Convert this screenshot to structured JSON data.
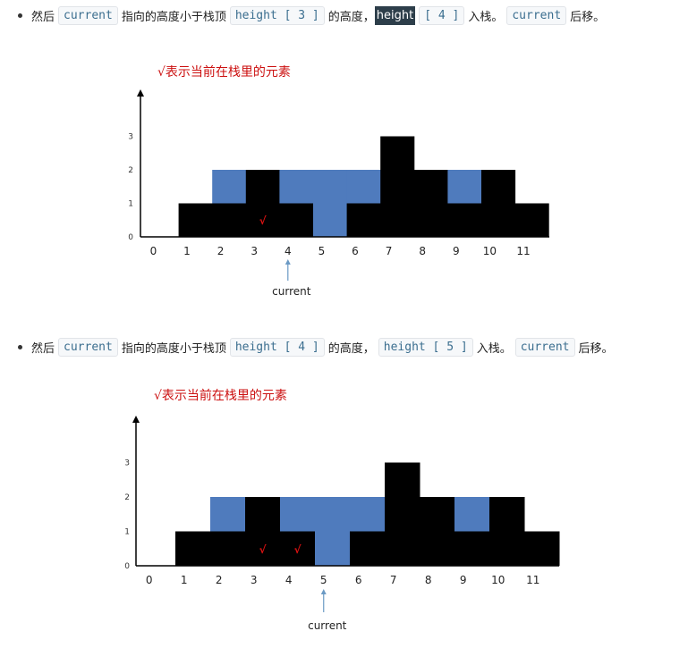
{
  "steps": [
    {
      "parts": [
        {
          "type": "text",
          "text": "然后"
        },
        {
          "type": "code",
          "text": "current"
        },
        {
          "type": "text",
          "text": "指向的高度小于栈顶"
        },
        {
          "type": "code",
          "text": "height [ 3 ]"
        },
        {
          "type": "text",
          "text": "的高度，"
        },
        {
          "type": "highlight",
          "text": "height"
        },
        {
          "type": "code",
          "text": "[ 4 ]"
        },
        {
          "type": "text",
          "text": "入栈。"
        },
        {
          "type": "code",
          "text": "current"
        },
        {
          "type": "text",
          "text": "后移。"
        }
      ],
      "diagram": {
        "legend": "√表示当前在栈里的元素",
        "heights": [
          0,
          1,
          1,
          2,
          1,
          0,
          1,
          3,
          2,
          1,
          2,
          1
        ],
        "water": [
          0,
          0,
          1,
          0,
          1,
          2,
          1,
          0,
          0,
          1,
          0,
          0
        ],
        "y_ticks": [
          "0",
          "1",
          "2",
          "3"
        ],
        "x_labels": [
          "0",
          "1",
          "2",
          "3",
          "4",
          "5",
          "6",
          "7",
          "8",
          "9",
          "10",
          "11"
        ],
        "stack_marks": [
          3
        ],
        "check_symbol": "√",
        "current_index": 4,
        "current_label": "current"
      }
    },
    {
      "parts": [
        {
          "type": "text",
          "text": "然后"
        },
        {
          "type": "code",
          "text": "current"
        },
        {
          "type": "text",
          "text": "指向的高度小于栈顶"
        },
        {
          "type": "code",
          "text": "height [ 4 ]"
        },
        {
          "type": "text",
          "text": "的高度，"
        },
        {
          "type": "code",
          "text": "height [ 5 ]"
        },
        {
          "type": "text",
          "text": "入栈。"
        },
        {
          "type": "code",
          "text": "current"
        },
        {
          "type": "text",
          "text": "后移。"
        }
      ],
      "diagram": {
        "legend": "√表示当前在栈里的元素",
        "heights": [
          0,
          1,
          1,
          2,
          1,
          0,
          1,
          3,
          2,
          1,
          2,
          1
        ],
        "water": [
          0,
          0,
          1,
          0,
          1,
          2,
          1,
          0,
          0,
          1,
          0,
          0
        ],
        "y_ticks": [
          "0",
          "1",
          "2",
          "3"
        ],
        "x_labels": [
          "0",
          "1",
          "2",
          "3",
          "4",
          "5",
          "6",
          "7",
          "8",
          "9",
          "10",
          "11"
        ],
        "stack_marks": [
          3,
          4
        ],
        "check_symbol": "√",
        "current_index": 5,
        "current_label": "current"
      }
    }
  ],
  "colors": {
    "bar": "#000000",
    "water": "#4f7bbd",
    "check": "#dd1111",
    "arrow": "#6b9ac4"
  }
}
